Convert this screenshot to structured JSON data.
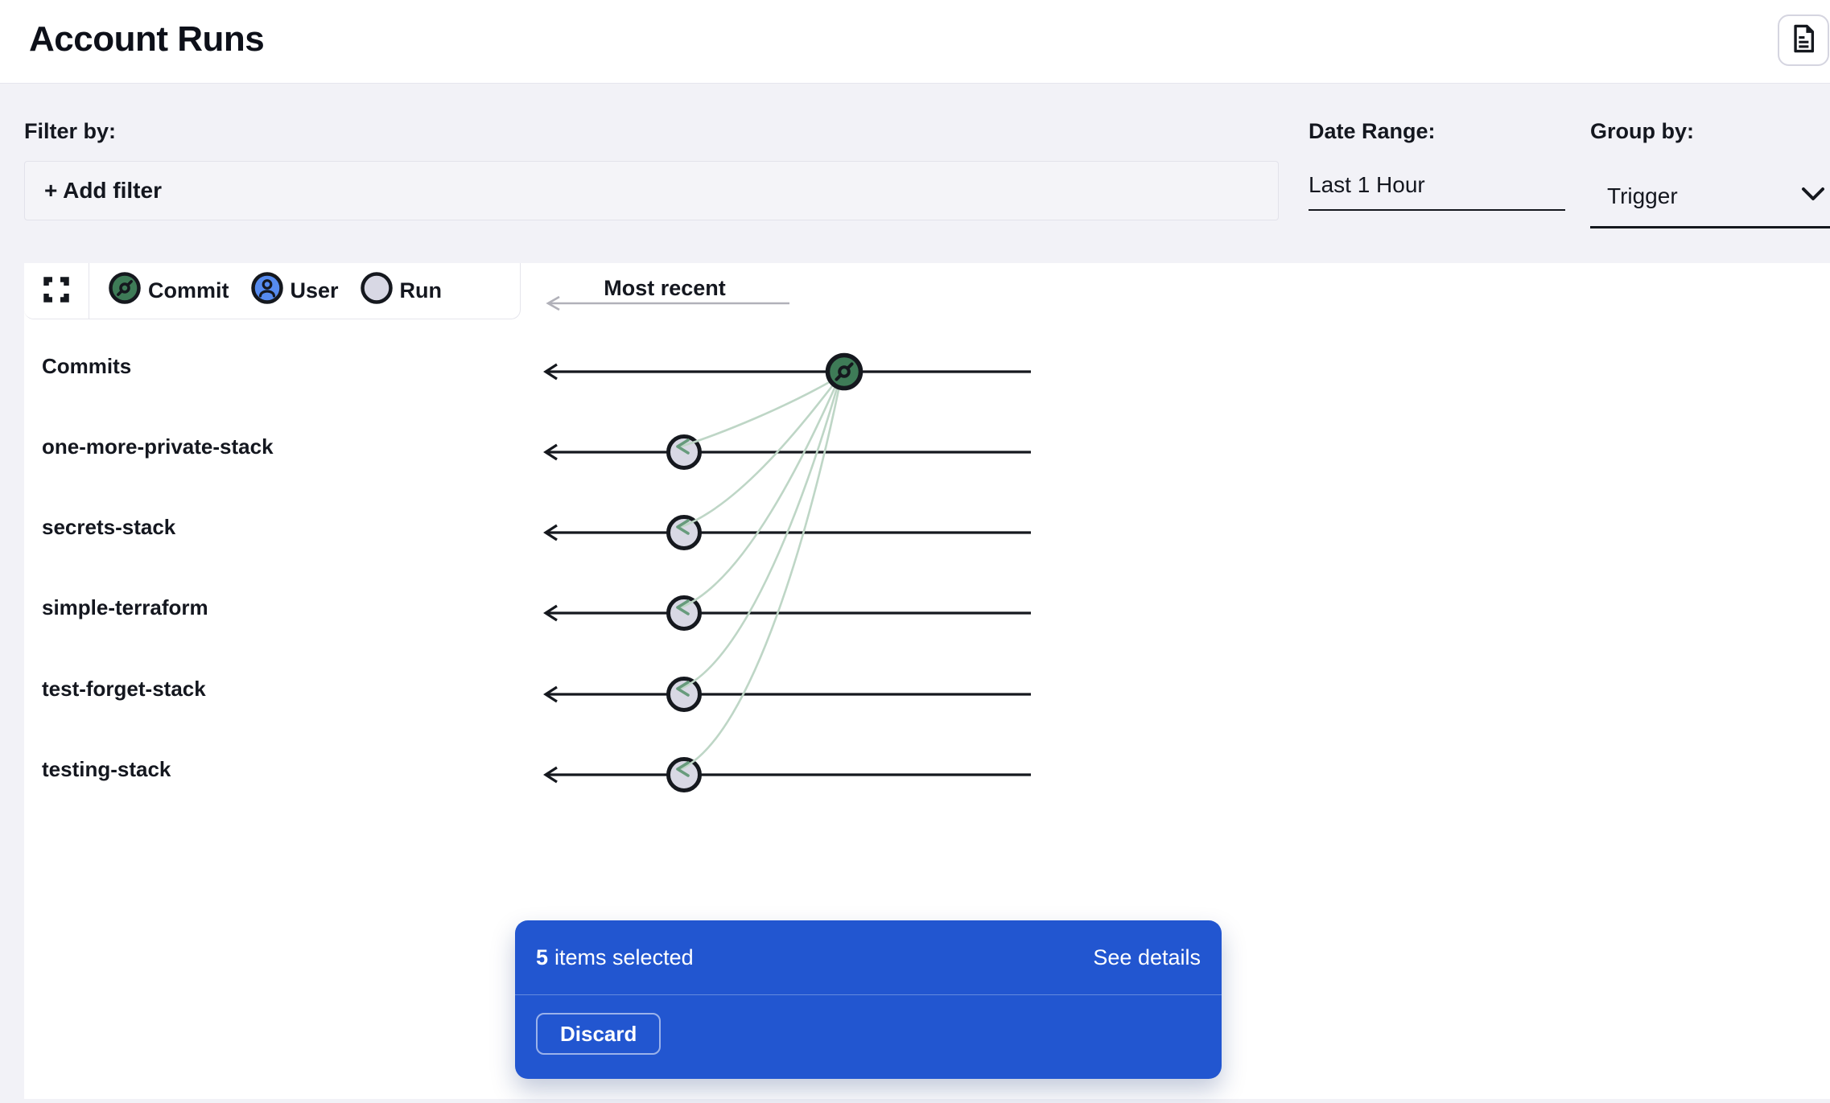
{
  "header": {
    "title": "Account Runs",
    "doc_button_icon": "document-icon"
  },
  "filters": {
    "label": "Filter by:",
    "add_filter_label": "+ Add filter",
    "date_range": {
      "label": "Date Range:",
      "value": "Last 1 Hour"
    },
    "group_by": {
      "label": "Group by:",
      "value": "Trigger",
      "icon": "chevron-down-icon"
    }
  },
  "toolbar": {
    "fullscreen_icon": "fullscreen-expand-icon",
    "legend": [
      {
        "id": "commit",
        "label": "Commit",
        "icon": "commit-icon"
      },
      {
        "id": "user",
        "label": "User",
        "icon": "user-icon"
      },
      {
        "id": "run",
        "label": "Run",
        "icon": "run-icon"
      }
    ]
  },
  "timeline": {
    "direction_label": "Most recent",
    "rows": [
      {
        "label": "Commits",
        "node": "commit"
      },
      {
        "label": "one-more-private-stack",
        "node": "run"
      },
      {
        "label": "secrets-stack",
        "node": "run"
      },
      {
        "label": "simple-terraform",
        "node": "run"
      },
      {
        "label": "test-forget-stack",
        "node": "run"
      },
      {
        "label": "testing-stack",
        "node": "run"
      }
    ]
  },
  "selection_panel": {
    "count": "5",
    "label": "items selected",
    "see_details_label": "See details",
    "discard_label": "Discard"
  },
  "colors": {
    "accent_blue": "#2256d0",
    "commit_green": "#3e7b57",
    "user_blue": "#568bef",
    "run_gray": "#d8d8e4",
    "node_ring": "#15181e",
    "line_black": "#15181e",
    "curve_green": "#bed6c6",
    "curve_arrow_green": "#679b7c",
    "gray_arrow": "#b1b1b9"
  }
}
